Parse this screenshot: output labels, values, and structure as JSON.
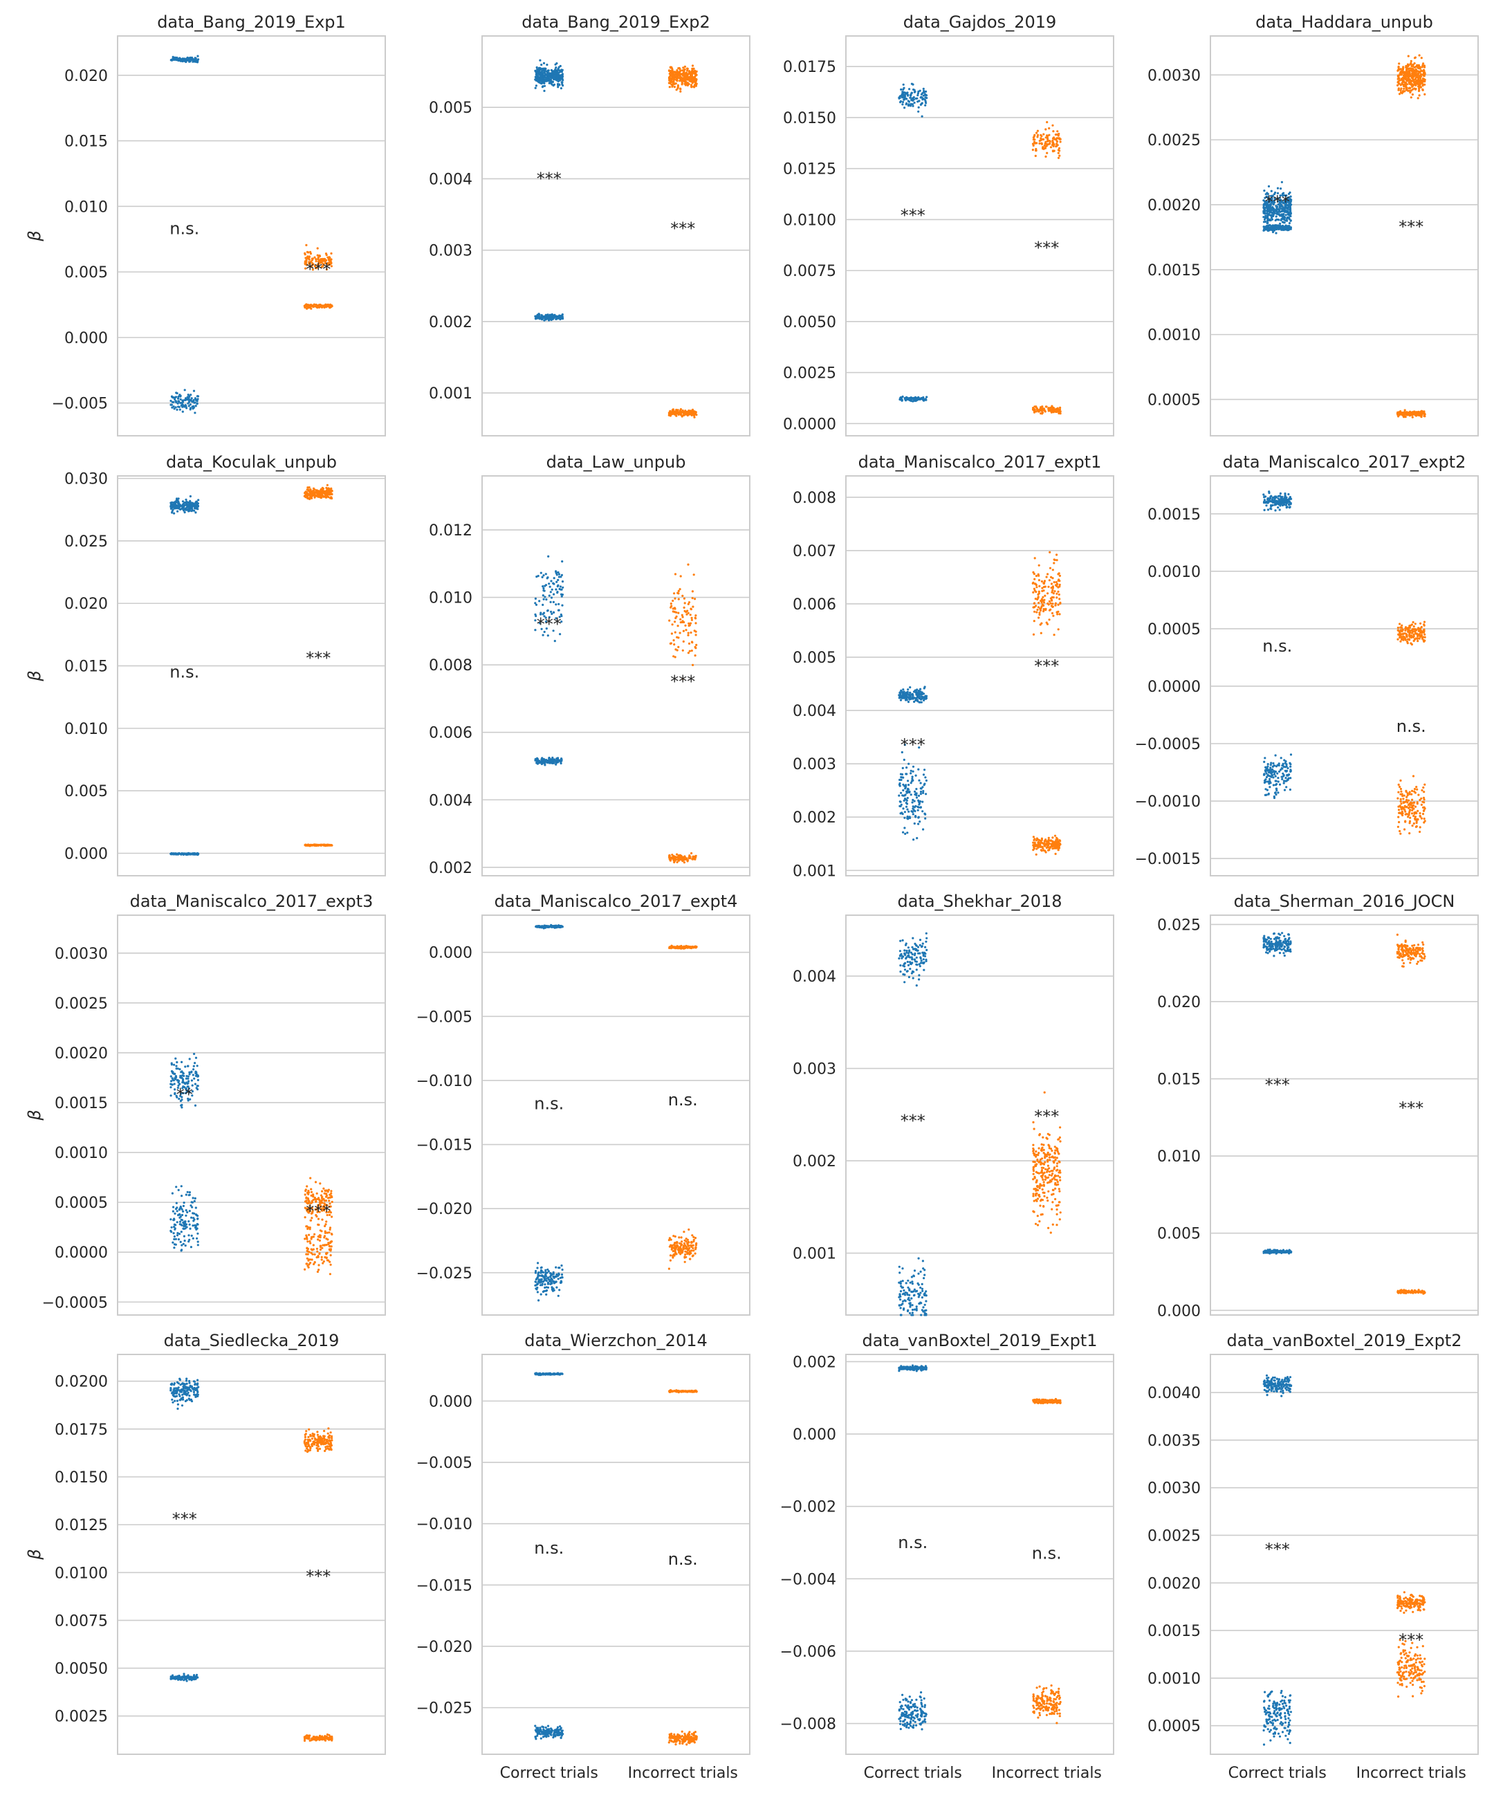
{
  "figure": {
    "y_label": "β",
    "x_categories": [
      "Correct trials",
      "Incorrect trials"
    ],
    "colors": {
      "correct": "#1f77b4",
      "incorrect": "#ff7f0e",
      "grid": "#cccccc",
      "text": "#262626"
    },
    "grid": true
  },
  "chart_data": [
    {
      "type": "scatter",
      "title": "data_Bang_2019_Exp1",
      "ylim": [
        -0.0075,
        0.023
      ],
      "yticks": [
        -0.005,
        0.0,
        0.005,
        0.01,
        0.015,
        0.02
      ],
      "yticklabels": [
        "−0.005",
        "0.000",
        "0.005",
        "0.010",
        "0.015",
        "0.020"
      ],
      "show_ylabel": true,
      "show_xlabels": false,
      "clusters": [
        {
          "cat": 0,
          "mean": 0.0212,
          "sd": 0.0001,
          "n": 110
        },
        {
          "cat": 0,
          "mean": -0.0049,
          "sd": 0.00035,
          "n": 110
        },
        {
          "cat": 1,
          "mean": 0.0059,
          "sd": 0.0003,
          "n": 110
        },
        {
          "cat": 1,
          "mean": 0.0024,
          "sd": 6e-05,
          "n": 110
        }
      ],
      "annotations": [
        {
          "cat": 0,
          "y": 0.0083,
          "text": "n.s."
        },
        {
          "cat": 1,
          "y": 0.0052,
          "text": "***"
        }
      ]
    },
    {
      "type": "scatter",
      "title": "data_Bang_2019_Exp2",
      "ylim": [
        0.0004,
        0.006
      ],
      "yticks": [
        0.001,
        0.002,
        0.003,
        0.004,
        0.005
      ],
      "yticklabels": [
        "0.001",
        "0.002",
        "0.003",
        "0.004",
        "0.005"
      ],
      "show_ylabel": false,
      "show_xlabels": false,
      "clusters": [
        {
          "cat": 0,
          "mean": 0.00543,
          "sd": 7e-05,
          "n": 300
        },
        {
          "cat": 0,
          "mean": 0.00206,
          "sd": 2e-05,
          "n": 150
        },
        {
          "cat": 1,
          "mean": 0.00542,
          "sd": 7e-05,
          "n": 300
        },
        {
          "cat": 1,
          "mean": 0.00072,
          "sd": 2e-05,
          "n": 150
        }
      ],
      "annotations": [
        {
          "cat": 0,
          "y": 0.004,
          "text": "***"
        },
        {
          "cat": 1,
          "y": 0.0033,
          "text": "***"
        }
      ]
    },
    {
      "type": "scatter",
      "title": "data_Gajdos_2019",
      "ylim": [
        -0.0006,
        0.019
      ],
      "yticks": [
        0.0,
        0.0025,
        0.005,
        0.0075,
        0.01,
        0.0125,
        0.015,
        0.0175
      ],
      "yticklabels": [
        "0.0000",
        "0.0025",
        "0.0050",
        "0.0075",
        "0.0100",
        "0.0125",
        "0.0150",
        "0.0175"
      ],
      "show_ylabel": false,
      "show_xlabels": false,
      "clusters": [
        {
          "cat": 0,
          "mean": 0.016,
          "sd": 0.00025,
          "n": 110
        },
        {
          "cat": 0,
          "mean": 0.0012,
          "sd": 5e-05,
          "n": 90
        },
        {
          "cat": 1,
          "mean": 0.0138,
          "sd": 0.0003,
          "n": 110
        },
        {
          "cat": 1,
          "mean": 0.0007,
          "sd": 8e-05,
          "n": 90
        }
      ],
      "annotations": [
        {
          "cat": 0,
          "y": 0.0102,
          "text": "***"
        },
        {
          "cat": 1,
          "y": 0.0086,
          "text": "***"
        }
      ]
    },
    {
      "type": "scatter",
      "title": "data_Haddara_unpub",
      "ylim": [
        0.00022,
        0.0033
      ],
      "yticks": [
        0.0005,
        0.001,
        0.0015,
        0.002,
        0.0025,
        0.003
      ],
      "yticklabels": [
        "0.0005",
        "0.0010",
        "0.0015",
        "0.0020",
        "0.0025",
        "0.0030"
      ],
      "show_ylabel": false,
      "show_xlabels": false,
      "clusters": [
        {
          "cat": 0,
          "mean": 0.00197,
          "sd": 6e-05,
          "n": 350
        },
        {
          "cat": 0,
          "mean": 0.00182,
          "sd": 1e-05,
          "n": 150
        },
        {
          "cat": 1,
          "mean": 0.00298,
          "sd": 6e-05,
          "n": 350
        },
        {
          "cat": 1,
          "mean": 0.00039,
          "sd": 1e-05,
          "n": 150
        }
      ],
      "annotations": [
        {
          "cat": 0,
          "y": 0.00202,
          "text": "***"
        },
        {
          "cat": 1,
          "y": 0.00183,
          "text": "***"
        }
      ]
    },
    {
      "type": "scatter",
      "title": "data_Koculak_unpub",
      "ylim": [
        -0.0018,
        0.0302
      ],
      "yticks": [
        0.0,
        0.005,
        0.01,
        0.015,
        0.02,
        0.025,
        0.03
      ],
      "yticklabels": [
        "0.000",
        "0.005",
        "0.010",
        "0.015",
        "0.020",
        "0.025",
        "0.030"
      ],
      "show_ylabel": true,
      "show_xlabels": false,
      "clusters": [
        {
          "cat": 0,
          "mean": 0.0278,
          "sd": 0.0002,
          "n": 200
        },
        {
          "cat": 0,
          "mean": -5e-05,
          "sd": 3e-05,
          "n": 120
        },
        {
          "cat": 1,
          "mean": 0.0288,
          "sd": 0.0002,
          "n": 200
        },
        {
          "cat": 1,
          "mean": 0.00065,
          "sd": 2e-05,
          "n": 120
        }
      ],
      "annotations": [
        {
          "cat": 0,
          "y": 0.0145,
          "text": "n.s."
        },
        {
          "cat": 1,
          "y": 0.0156,
          "text": "***"
        }
      ]
    },
    {
      "type": "scatter",
      "title": "data_Law_unpub",
      "ylim": [
        0.00175,
        0.0136
      ],
      "yticks": [
        0.002,
        0.004,
        0.006,
        0.008,
        0.01,
        0.012
      ],
      "yticklabels": [
        "0.002",
        "0.004",
        "0.006",
        "0.008",
        "0.010",
        "0.012"
      ],
      "show_ylabel": false,
      "show_xlabels": false,
      "clusters": [
        {
          "cat": 0,
          "mean": 0.01,
          "sd": 0.0005,
          "n": 100
        },
        {
          "cat": 0,
          "mean": 0.00515,
          "sd": 5e-05,
          "n": 100
        },
        {
          "cat": 1,
          "mean": 0.0093,
          "sd": 0.0006,
          "n": 100
        },
        {
          "cat": 1,
          "mean": 0.00228,
          "sd": 6e-05,
          "n": 100
        }
      ],
      "annotations": [
        {
          "cat": 0,
          "y": 0.0092,
          "text": "***"
        },
        {
          "cat": 1,
          "y": 0.0075,
          "text": "***"
        }
      ]
    },
    {
      "type": "scatter",
      "title": "data_Maniscalco_2017_expt1",
      "ylim": [
        0.0009,
        0.0084
      ],
      "yticks": [
        0.001,
        0.002,
        0.003,
        0.004,
        0.005,
        0.006,
        0.007,
        0.008
      ],
      "yticklabels": [
        "0.001",
        "0.002",
        "0.003",
        "0.004",
        "0.005",
        "0.006",
        "0.007",
        "0.008"
      ],
      "show_ylabel": false,
      "show_xlabels": false,
      "clusters": [
        {
          "cat": 0,
          "mean": 0.00428,
          "sd": 6e-05,
          "n": 150
        },
        {
          "cat": 0,
          "mean": 0.0024,
          "sd": 0.0003,
          "n": 150
        },
        {
          "cat": 1,
          "mean": 0.00615,
          "sd": 0.0003,
          "n": 150
        },
        {
          "cat": 1,
          "mean": 0.00148,
          "sd": 6e-05,
          "n": 150
        }
      ],
      "annotations": [
        {
          "cat": 0,
          "y": 0.00335,
          "text": "***"
        },
        {
          "cat": 1,
          "y": 0.00483,
          "text": "***"
        }
      ]
    },
    {
      "type": "scatter",
      "title": "data_Maniscalco_2017_expt2",
      "ylim": [
        -0.00165,
        0.00183
      ],
      "yticks": [
        -0.0015,
        -0.001,
        -0.0005,
        0.0,
        0.0005,
        0.001,
        0.0015
      ],
      "yticklabels": [
        "−0.0015",
        "−0.0010",
        "−0.0005",
        "0.0000",
        "0.0005",
        "0.0010",
        "0.0015"
      ],
      "show_ylabel": false,
      "show_xlabels": false,
      "clusters": [
        {
          "cat": 0,
          "mean": 0.00161,
          "sd": 3e-05,
          "n": 150
        },
        {
          "cat": 0,
          "mean": -0.00078,
          "sd": 8e-05,
          "n": 150
        },
        {
          "cat": 1,
          "mean": 0.00046,
          "sd": 4e-05,
          "n": 150
        },
        {
          "cat": 1,
          "mean": -0.00105,
          "sd": 0.0001,
          "n": 150
        }
      ],
      "annotations": [
        {
          "cat": 0,
          "y": 0.00035,
          "text": "n.s."
        },
        {
          "cat": 1,
          "y": -0.00035,
          "text": "n.s."
        }
      ]
    },
    {
      "type": "scatter",
      "title": "data_Maniscalco_2017_expt3",
      "ylim": [
        -0.00063,
        0.00338
      ],
      "yticks": [
        -0.0005,
        0.0,
        0.0005,
        0.001,
        0.0015,
        0.002,
        0.0025,
        0.003
      ],
      "yticklabels": [
        "−0.0005",
        "0.0000",
        "0.0005",
        "0.0010",
        "0.0015",
        "0.0020",
        "0.0025",
        "0.0030"
      ],
      "show_ylabel": true,
      "show_xlabels": false,
      "clusters": [
        {
          "cat": 0,
          "mean": 0.00173,
          "sd": 0.00012,
          "n": 130
        },
        {
          "cat": 0,
          "mean": 0.0003,
          "sd": 0.00015,
          "n": 130
        },
        {
          "cat": 1,
          "mean": 0.0005,
          "sd": 8e-05,
          "n": 130
        },
        {
          "cat": 1,
          "mean": 5e-05,
          "sd": 0.00015,
          "n": 130
        }
      ],
      "annotations": [
        {
          "cat": 0,
          "y": 0.00158,
          "text": "**"
        },
        {
          "cat": 1,
          "y": 0.00041,
          "text": "***"
        }
      ]
    },
    {
      "type": "scatter",
      "title": "data_Maniscalco_2017_expt4",
      "ylim": [
        -0.0283,
        0.0029
      ],
      "yticks": [
        -0.025,
        -0.02,
        -0.015,
        -0.01,
        -0.005,
        0.0
      ],
      "yticklabels": [
        "−0.025",
        "−0.020",
        "−0.015",
        "−0.010",
        "−0.005",
        "0.000"
      ],
      "show_ylabel": false,
      "show_xlabels": false,
      "clusters": [
        {
          "cat": 0,
          "mean": 0.002,
          "sd": 4e-05,
          "n": 120
        },
        {
          "cat": 0,
          "mean": -0.0255,
          "sd": 0.0005,
          "n": 150
        },
        {
          "cat": 1,
          "mean": 0.0004,
          "sd": 4e-05,
          "n": 120
        },
        {
          "cat": 1,
          "mean": -0.023,
          "sd": 0.0005,
          "n": 150
        }
      ],
      "annotations": [
        {
          "cat": 0,
          "y": -0.0118,
          "text": "n.s."
        },
        {
          "cat": 1,
          "y": -0.0115,
          "text": "n.s."
        }
      ]
    },
    {
      "type": "scatter",
      "title": "data_Shekhar_2018",
      "ylim": [
        0.00033,
        0.00466
      ],
      "yticks": [
        0.001,
        0.002,
        0.003,
        0.004
      ],
      "yticklabels": [
        "0.001",
        "0.002",
        "0.003",
        "0.004"
      ],
      "show_ylabel": false,
      "show_xlabels": false,
      "clusters": [
        {
          "cat": 0,
          "mean": 0.0042,
          "sd": 0.0001,
          "n": 120
        },
        {
          "cat": 0,
          "mean": 0.00055,
          "sd": 0.00015,
          "n": 120
        },
        {
          "cat": 1,
          "mean": 0.00185,
          "sd": 0.00025,
          "n": 240
        }
      ],
      "annotations": [
        {
          "cat": 0,
          "y": 0.00243,
          "text": "***"
        },
        {
          "cat": 1,
          "y": 0.00248,
          "text": "***"
        }
      ]
    },
    {
      "type": "scatter",
      "title": "data_Sherman_2016_JOCN",
      "ylim": [
        -0.0003,
        0.0256
      ],
      "yticks": [
        0.0,
        0.005,
        0.01,
        0.015,
        0.02,
        0.025
      ],
      "yticklabels": [
        "0.000",
        "0.005",
        "0.010",
        "0.015",
        "0.020",
        "0.025"
      ],
      "show_ylabel": false,
      "show_xlabels": false,
      "clusters": [
        {
          "cat": 0,
          "mean": 0.0237,
          "sd": 0.0003,
          "n": 150
        },
        {
          "cat": 0,
          "mean": 0.0038,
          "sd": 6e-05,
          "n": 120
        },
        {
          "cat": 1,
          "mean": 0.0232,
          "sd": 0.0003,
          "n": 150
        },
        {
          "cat": 1,
          "mean": 0.0012,
          "sd": 5e-05,
          "n": 120
        }
      ],
      "annotations": [
        {
          "cat": 0,
          "y": 0.0146,
          "text": "***"
        },
        {
          "cat": 1,
          "y": 0.0131,
          "text": "***"
        }
      ]
    },
    {
      "type": "scatter",
      "title": "data_Siedlecka_2019",
      "ylim": [
        0.0005,
        0.0214
      ],
      "yticks": [
        0.0025,
        0.005,
        0.0075,
        0.01,
        0.0125,
        0.015,
        0.0175,
        0.02
      ],
      "yticklabels": [
        "0.0025",
        "0.0050",
        "0.0075",
        "0.0100",
        "0.0125",
        "0.0150",
        "0.0175",
        "0.0200"
      ],
      "show_ylabel": true,
      "show_xlabels": false,
      "clusters": [
        {
          "cat": 0,
          "mean": 0.0195,
          "sd": 0.0003,
          "n": 150
        },
        {
          "cat": 0,
          "mean": 0.0045,
          "sd": 6e-05,
          "n": 120
        },
        {
          "cat": 1,
          "mean": 0.0168,
          "sd": 0.0003,
          "n": 150
        },
        {
          "cat": 1,
          "mean": 0.00135,
          "sd": 6e-05,
          "n": 120
        }
      ],
      "annotations": [
        {
          "cat": 0,
          "y": 0.0128,
          "text": "***"
        },
        {
          "cat": 1,
          "y": 0.0098,
          "text": "***"
        }
      ]
    },
    {
      "type": "scatter",
      "title": "data_Wierzchon_2014",
      "ylim": [
        -0.0288,
        0.0038
      ],
      "yticks": [
        -0.025,
        -0.02,
        -0.015,
        -0.01,
        -0.005,
        0.0
      ],
      "yticklabels": [
        "−0.025",
        "−0.020",
        "−0.015",
        "−0.010",
        "−0.005",
        "0.000"
      ],
      "show_ylabel": false,
      "show_xlabels": true,
      "clusters": [
        {
          "cat": 0,
          "mean": 0.0022,
          "sd": 3e-05,
          "n": 120
        },
        {
          "cat": 0,
          "mean": -0.027,
          "sd": 0.0002,
          "n": 150
        },
        {
          "cat": 1,
          "mean": 0.0008,
          "sd": 3e-05,
          "n": 120
        },
        {
          "cat": 1,
          "mean": -0.0275,
          "sd": 0.0002,
          "n": 150
        }
      ],
      "annotations": [
        {
          "cat": 0,
          "y": -0.012,
          "text": "n.s."
        },
        {
          "cat": 1,
          "y": -0.0129,
          "text": "n.s."
        }
      ]
    },
    {
      "type": "scatter",
      "title": "data_vanBoxtel_2019_Expt1",
      "ylim": [
        -0.00885,
        0.0022
      ],
      "yticks": [
        -0.008,
        -0.006,
        -0.004,
        -0.002,
        0.0,
        0.002
      ],
      "yticklabels": [
        "−0.008",
        "−0.006",
        "−0.004",
        "−0.002",
        "0.000",
        "0.002"
      ],
      "show_ylabel": false,
      "show_xlabels": true,
      "clusters": [
        {
          "cat": 0,
          "mean": 0.00182,
          "sd": 3e-05,
          "n": 120
        },
        {
          "cat": 0,
          "mean": -0.0077,
          "sd": 0.0002,
          "n": 150
        },
        {
          "cat": 1,
          "mean": 0.0009,
          "sd": 3e-05,
          "n": 120
        },
        {
          "cat": 1,
          "mean": -0.0074,
          "sd": 0.0002,
          "n": 150
        }
      ],
      "annotations": [
        {
          "cat": 0,
          "y": -0.003,
          "text": "n.s."
        },
        {
          "cat": 1,
          "y": -0.0033,
          "text": "n.s."
        }
      ]
    },
    {
      "type": "scatter",
      "title": "data_vanBoxtel_2019_Expt2",
      "ylim": [
        0.0002,
        0.0044
      ],
      "yticks": [
        0.0005,
        0.001,
        0.0015,
        0.002,
        0.0025,
        0.003,
        0.0035,
        0.004
      ],
      "yticklabels": [
        "0.0005",
        "0.0010",
        "0.0015",
        "0.0020",
        "0.0025",
        "0.0030",
        "0.0035",
        "0.0040"
      ],
      "show_ylabel": false,
      "show_xlabels": true,
      "clusters": [
        {
          "cat": 0,
          "mean": 0.00408,
          "sd": 4e-05,
          "n": 140
        },
        {
          "cat": 0,
          "mean": 0.0006,
          "sd": 0.00012,
          "n": 150
        },
        {
          "cat": 1,
          "mean": 0.00179,
          "sd": 4e-05,
          "n": 140
        },
        {
          "cat": 1,
          "mean": 0.0011,
          "sd": 0.00012,
          "n": 150
        }
      ],
      "annotations": [
        {
          "cat": 0,
          "y": 0.00235,
          "text": "***"
        },
        {
          "cat": 1,
          "y": 0.0014,
          "text": "***"
        }
      ]
    }
  ]
}
